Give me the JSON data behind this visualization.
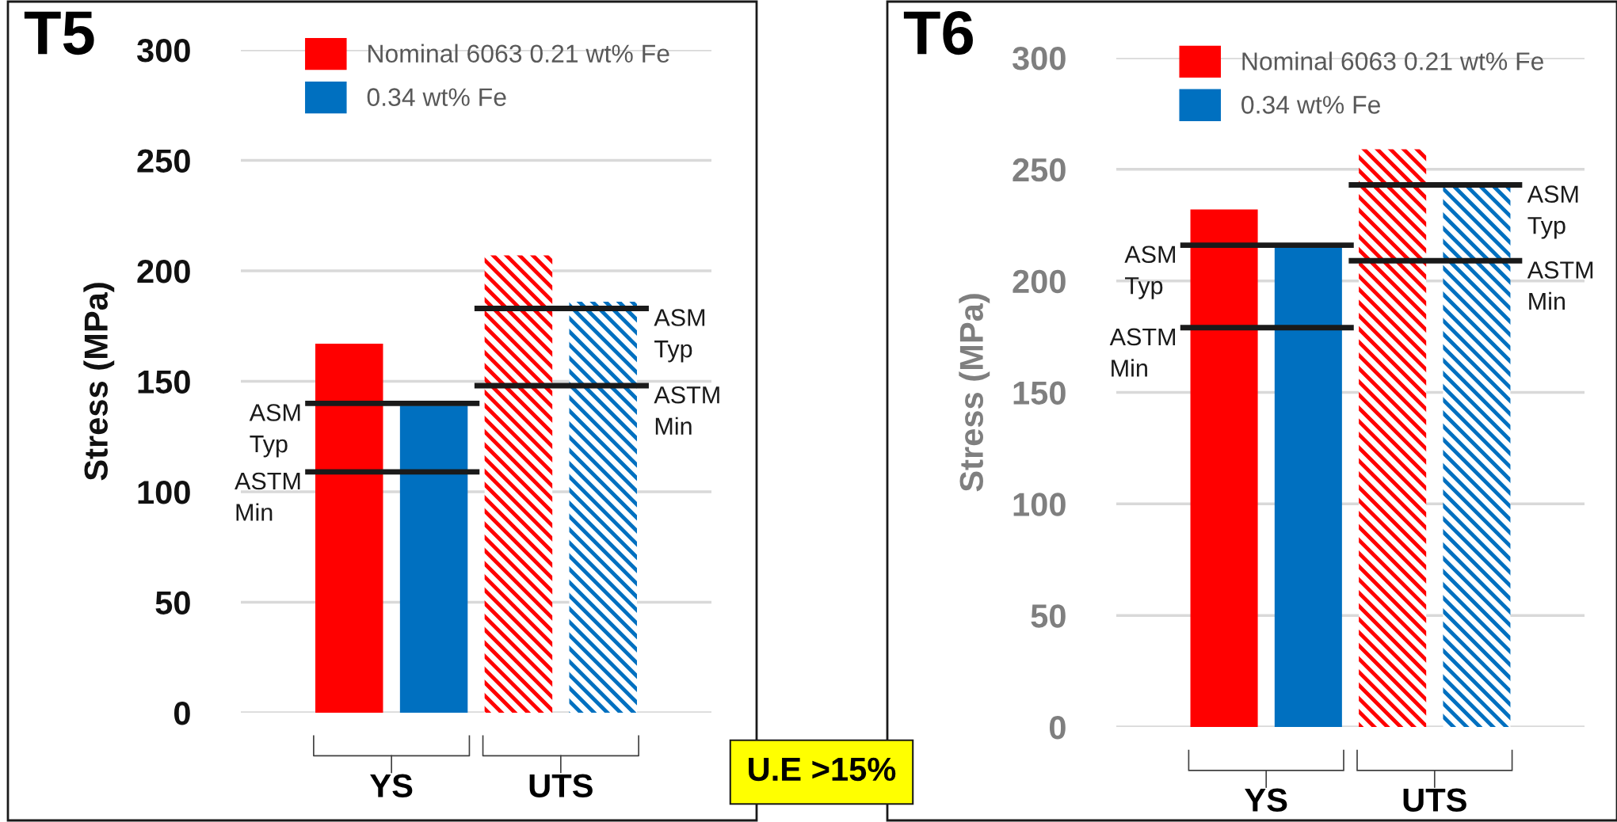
{
  "chart_data": [
    {
      "type": "bar",
      "title": "T5",
      "ylabel": "Stress (MPa)",
      "categories": [
        "YS",
        "UTS"
      ],
      "series": [
        {
          "name": "Nominal 6063 0.21 wt% Fe",
          "color": "#ff0000",
          "values": [
            167,
            null
          ]
        },
        {
          "name": "0.34 wt% Fe",
          "color": "#0070c0",
          "values": [
            139,
            null
          ]
        },
        {
          "color": "#ff0000",
          "values": [
            null,
            207
          ]
        },
        {
          "color": "#0070c0",
          "values": [
            null,
            186
          ]
        }
      ],
      "ylim": [
        0,
        300
      ],
      "yticks": [
        0,
        50,
        100,
        150,
        200,
        250,
        300
      ],
      "grid": "y",
      "legend": "top",
      "ref_lines": [
        {
          "axis": "y",
          "value": 140,
          "label": "ASM\nTyp",
          "color": "#1a1a1a"
        },
        {
          "axis": "y",
          "value": 109,
          "label": "ASTM\nMin",
          "color": "#1a1a1a"
        },
        {
          "axis": "y",
          "value": 183,
          "label": "ASM\nTyp",
          "color": "#1a1a1a"
        },
        {
          "axis": "y",
          "value": 148,
          "label": "ASTM\nMin",
          "color": "#1a1a1a"
        }
      ],
      "annotations": [
        "U.E >15%"
      ]
    },
    {
      "type": "bar",
      "title": "T6",
      "ylabel": "Stress (MPa)",
      "categories": [
        "YS",
        "UTS"
      ],
      "series": [
        {
          "name": "Nominal 6063 0.21 wt% Fe",
          "color": "#ff0000",
          "values": [
            232,
            null
          ]
        },
        {
          "name": "0.34 wt% Fe",
          "color": "#0070c0",
          "values": [
            215,
            null
          ]
        },
        {
          "color": "#ff0000",
          "values": [
            null,
            259
          ]
        },
        {
          "color": "#0070c0",
          "values": [
            null,
            243
          ]
        }
      ],
      "ylim": [
        0,
        300
      ],
      "yticks": [
        0,
        50,
        100,
        150,
        200,
        250,
        300
      ],
      "grid": "y",
      "legend": "top",
      "ref_lines": [
        {
          "axis": "y",
          "value": 216,
          "label": "ASM\nTyp",
          "color": "#1a1a1a"
        },
        {
          "axis": "y",
          "value": 179,
          "label": "ASTM\nMin",
          "color": "#1a1a1a"
        },
        {
          "axis": "y",
          "value": 243,
          "label": "ASM\nTyp",
          "color": "#1a1a1a"
        },
        {
          "axis": "y",
          "value": 209,
          "label": "ASTM\nMin",
          "color": "#1a1a1a"
        }
      ]
    }
  ]
}
